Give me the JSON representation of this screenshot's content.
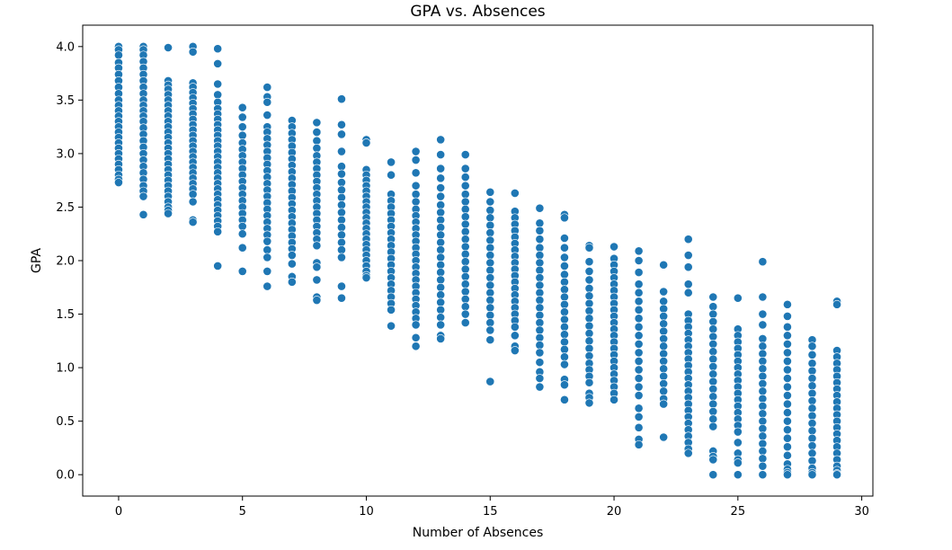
{
  "chart_data": {
    "type": "scatter",
    "title": "GPA vs. Absences",
    "xlabel": "Number of Absences",
    "ylabel": "GPA",
    "xlim": [
      -1.45,
      30.45
    ],
    "ylim": [
      -0.2,
      4.2
    ],
    "xticks": [
      0,
      5,
      10,
      15,
      20,
      25,
      30
    ],
    "xtick_labels": [
      "0",
      "5",
      "10",
      "15",
      "20",
      "25",
      "30"
    ],
    "yticks": [
      0.0,
      0.5,
      1.0,
      1.5,
      2.0,
      2.5,
      3.0,
      3.5,
      4.0
    ],
    "ytick_labels": [
      "0.0",
      "0.5",
      "1.0",
      "1.5",
      "2.0",
      "2.5",
      "3.0",
      "3.5",
      "4.0"
    ],
    "grid": false,
    "marker_color": "#1f77b4",
    "points": [
      {
        "x": 0,
        "y": [
          4.0,
          3.97,
          3.92,
          3.85,
          3.8,
          3.74,
          3.68,
          3.62,
          3.56,
          3.5,
          3.45,
          3.4,
          3.35,
          3.3,
          3.25,
          3.2,
          3.15,
          3.1,
          3.05,
          3.0,
          2.95,
          2.9,
          2.85,
          2.8,
          2.76,
          2.73
        ]
      },
      {
        "x": 1,
        "y": [
          4.0,
          3.97,
          3.92,
          3.86,
          3.8,
          3.74,
          3.68,
          3.62,
          3.56,
          3.5,
          3.45,
          3.4,
          3.35,
          3.3,
          3.24,
          3.18,
          3.12,
          3.06,
          3.0,
          2.94,
          2.88,
          2.82,
          2.76,
          2.7,
          2.65,
          2.6,
          2.43
        ]
      },
      {
        "x": 2,
        "y": [
          3.99,
          3.68,
          3.64,
          3.6,
          3.55,
          3.5,
          3.45,
          3.4,
          3.35,
          3.3,
          3.25,
          3.2,
          3.15,
          3.1,
          3.05,
          3.0,
          2.95,
          2.9,
          2.85,
          2.8,
          2.75,
          2.7,
          2.65,
          2.6,
          2.55,
          2.5,
          2.47,
          2.44
        ]
      },
      {
        "x": 3,
        "y": [
          4.0,
          3.95,
          3.66,
          3.62,
          3.57,
          3.52,
          3.47,
          3.42,
          3.37,
          3.32,
          3.27,
          3.22,
          3.17,
          3.12,
          3.07,
          3.02,
          2.97,
          2.92,
          2.87,
          2.82,
          2.77,
          2.72,
          2.67,
          2.62,
          2.55,
          2.38,
          2.36
        ]
      },
      {
        "x": 4,
        "y": [
          3.98,
          3.84,
          3.65,
          3.55,
          3.48,
          3.42,
          3.37,
          3.32,
          3.27,
          3.22,
          3.17,
          3.12,
          3.07,
          3.02,
          2.97,
          2.92,
          2.87,
          2.82,
          2.77,
          2.72,
          2.67,
          2.62,
          2.57,
          2.52,
          2.47,
          2.42,
          2.37,
          2.32,
          2.27,
          1.95
        ]
      },
      {
        "x": 5,
        "y": [
          3.43,
          3.34,
          3.25,
          3.17,
          3.1,
          3.04,
          2.98,
          2.92,
          2.86,
          2.8,
          2.74,
          2.68,
          2.62,
          2.56,
          2.5,
          2.44,
          2.38,
          2.32,
          2.25,
          2.12,
          1.9
        ]
      },
      {
        "x": 6,
        "y": [
          3.62,
          3.53,
          3.48,
          3.36,
          3.25,
          3.2,
          3.14,
          3.08,
          3.02,
          2.96,
          2.9,
          2.84,
          2.78,
          2.72,
          2.66,
          2.6,
          2.54,
          2.48,
          2.42,
          2.36,
          2.3,
          2.24,
          2.18,
          2.1,
          2.03,
          1.9,
          1.76
        ]
      },
      {
        "x": 7,
        "y": [
          3.31,
          3.25,
          3.19,
          3.13,
          3.07,
          3.01,
          2.95,
          2.89,
          2.83,
          2.77,
          2.71,
          2.65,
          2.59,
          2.53,
          2.47,
          2.41,
          2.35,
          2.29,
          2.23,
          2.17,
          2.11,
          2.05,
          1.97,
          1.85,
          1.8
        ]
      },
      {
        "x": 8,
        "y": [
          3.29,
          3.2,
          3.12,
          3.05,
          2.98,
          2.92,
          2.86,
          2.8,
          2.74,
          2.68,
          2.62,
          2.56,
          2.5,
          2.44,
          2.38,
          2.32,
          2.26,
          2.2,
          2.14,
          1.98,
          1.94,
          1.82,
          1.66,
          1.63
        ]
      },
      {
        "x": 9,
        "y": [
          3.51,
          3.27,
          3.18,
          3.02,
          2.88,
          2.81,
          2.73,
          2.66,
          2.59,
          2.52,
          2.45,
          2.38,
          2.31,
          2.24,
          2.17,
          2.1,
          2.03,
          1.76,
          1.65
        ]
      },
      {
        "x": 10,
        "y": [
          3.13,
          3.1,
          2.85,
          2.8,
          2.75,
          2.7,
          2.65,
          2.6,
          2.55,
          2.5,
          2.45,
          2.4,
          2.35,
          2.3,
          2.25,
          2.2,
          2.15,
          2.1,
          2.05,
          2.0,
          1.95,
          1.9,
          1.86,
          1.84
        ]
      },
      {
        "x": 11,
        "y": [
          2.92,
          2.8,
          2.62,
          2.56,
          2.5,
          2.44,
          2.38,
          2.32,
          2.26,
          2.2,
          2.14,
          2.08,
          2.02,
          1.96,
          1.9,
          1.84,
          1.78,
          1.72,
          1.66,
          1.6,
          1.54,
          1.39
        ]
      },
      {
        "x": 12,
        "y": [
          3.02,
          2.94,
          2.82,
          2.7,
          2.62,
          2.55,
          2.48,
          2.42,
          2.36,
          2.3,
          2.24,
          2.18,
          2.12,
          2.06,
          2.0,
          1.94,
          1.88,
          1.82,
          1.76,
          1.7,
          1.64,
          1.58,
          1.52,
          1.46,
          1.4,
          1.28,
          1.2
        ]
      },
      {
        "x": 13,
        "y": [
          3.13,
          2.99,
          2.86,
          2.77,
          2.68,
          2.6,
          2.52,
          2.45,
          2.38,
          2.31,
          2.24,
          2.17,
          2.1,
          2.03,
          1.96,
          1.89,
          1.82,
          1.75,
          1.68,
          1.61,
          1.54,
          1.47,
          1.4,
          1.3,
          1.27
        ]
      },
      {
        "x": 14,
        "y": [
          2.99,
          2.86,
          2.78,
          2.7,
          2.62,
          2.55,
          2.48,
          2.41,
          2.34,
          2.27,
          2.2,
          2.13,
          2.06,
          1.99,
          1.92,
          1.85,
          1.78,
          1.71,
          1.64,
          1.57,
          1.5,
          1.42
        ]
      },
      {
        "x": 15,
        "y": [
          2.64,
          2.55,
          2.47,
          2.4,
          2.33,
          2.26,
          2.19,
          2.12,
          2.05,
          1.98,
          1.91,
          1.84,
          1.77,
          1.7,
          1.63,
          1.56,
          1.49,
          1.42,
          1.35,
          1.26,
          0.87
        ]
      },
      {
        "x": 16,
        "y": [
          2.63,
          2.46,
          2.4,
          2.34,
          2.28,
          2.22,
          2.16,
          2.1,
          2.04,
          1.98,
          1.92,
          1.86,
          1.8,
          1.74,
          1.68,
          1.62,
          1.56,
          1.5,
          1.44,
          1.38,
          1.3,
          1.2,
          1.16
        ]
      },
      {
        "x": 17,
        "y": [
          2.49,
          2.35,
          2.28,
          2.2,
          2.12,
          2.05,
          1.98,
          1.91,
          1.84,
          1.77,
          1.7,
          1.63,
          1.56,
          1.49,
          1.42,
          1.35,
          1.28,
          1.21,
          1.14,
          1.05,
          0.96,
          0.9,
          0.82
        ]
      },
      {
        "x": 18,
        "y": [
          2.43,
          2.4,
          2.21,
          2.12,
          2.03,
          1.95,
          1.87,
          1.8,
          1.73,
          1.66,
          1.59,
          1.52,
          1.45,
          1.38,
          1.31,
          1.24,
          1.17,
          1.1,
          1.03,
          0.89,
          0.84,
          0.7
        ]
      },
      {
        "x": 19,
        "y": [
          2.14,
          2.12,
          1.99,
          1.9,
          1.82,
          1.74,
          1.67,
          1.6,
          1.53,
          1.46,
          1.39,
          1.32,
          1.25,
          1.18,
          1.11,
          1.04,
          0.98,
          0.92,
          0.86,
          0.76,
          0.72,
          0.67
        ]
      },
      {
        "x": 20,
        "y": [
          2.13,
          2.02,
          1.96,
          1.9,
          1.84,
          1.78,
          1.72,
          1.66,
          1.6,
          1.54,
          1.48,
          1.42,
          1.36,
          1.3,
          1.24,
          1.18,
          1.12,
          1.06,
          1.0,
          0.94,
          0.88,
          0.82,
          0.76,
          0.7
        ]
      },
      {
        "x": 21,
        "y": [
          2.09,
          2.0,
          1.89,
          1.78,
          1.7,
          1.62,
          1.54,
          1.46,
          1.38,
          1.3,
          1.22,
          1.14,
          1.06,
          0.98,
          0.9,
          0.82,
          0.74,
          0.62,
          0.54,
          0.44,
          0.33,
          0.28
        ]
      },
      {
        "x": 22,
        "y": [
          1.96,
          1.71,
          1.62,
          1.55,
          1.48,
          1.41,
          1.34,
          1.27,
          1.2,
          1.13,
          1.06,
          0.99,
          0.92,
          0.85,
          0.78,
          0.71,
          0.66,
          0.35
        ]
      },
      {
        "x": 23,
        "y": [
          2.2,
          2.05,
          1.94,
          1.78,
          1.7,
          1.5,
          1.44,
          1.38,
          1.32,
          1.26,
          1.2,
          1.14,
          1.08,
          1.02,
          0.96,
          0.9,
          0.84,
          0.78,
          0.72,
          0.66,
          0.6,
          0.54,
          0.48,
          0.42,
          0.36,
          0.3,
          0.24,
          0.2
        ]
      },
      {
        "x": 24,
        "y": [
          1.66,
          1.57,
          1.5,
          1.43,
          1.36,
          1.29,
          1.22,
          1.15,
          1.08,
          1.01,
          0.94,
          0.87,
          0.8,
          0.73,
          0.66,
          0.59,
          0.52,
          0.45,
          0.22,
          0.17,
          0.14,
          0.0
        ]
      },
      {
        "x": 25,
        "y": [
          1.65,
          1.36,
          1.3,
          1.24,
          1.18,
          1.12,
          1.06,
          1.0,
          0.94,
          0.88,
          0.82,
          0.76,
          0.7,
          0.64,
          0.58,
          0.52,
          0.46,
          0.4,
          0.3,
          0.2,
          0.14,
          0.11,
          0.0
        ]
      },
      {
        "x": 26,
        "y": [
          1.99,
          1.66,
          1.5,
          1.4,
          1.27,
          1.2,
          1.13,
          1.06,
          0.99,
          0.92,
          0.85,
          0.78,
          0.71,
          0.64,
          0.57,
          0.5,
          0.43,
          0.36,
          0.29,
          0.22,
          0.15,
          0.08,
          0.0
        ]
      },
      {
        "x": 27,
        "y": [
          1.59,
          1.48,
          1.38,
          1.3,
          1.22,
          1.14,
          1.06,
          0.98,
          0.9,
          0.82,
          0.74,
          0.66,
          0.58,
          0.5,
          0.42,
          0.34,
          0.26,
          0.18,
          0.1,
          0.05,
          0.02,
          0.0
        ]
      },
      {
        "x": 28,
        "y": [
          1.26,
          1.2,
          1.12,
          1.04,
          0.97,
          0.9,
          0.83,
          0.76,
          0.69,
          0.62,
          0.55,
          0.48,
          0.41,
          0.34,
          0.27,
          0.2,
          0.13,
          0.06,
          0.02,
          0.0
        ]
      },
      {
        "x": 29,
        "y": [
          1.62,
          1.59,
          1.16,
          1.1,
          1.04,
          0.98,
          0.92,
          0.86,
          0.8,
          0.74,
          0.68,
          0.62,
          0.56,
          0.5,
          0.44,
          0.38,
          0.32,
          0.26,
          0.2,
          0.14,
          0.08,
          0.04,
          0.01,
          0.0
        ]
      }
    ]
  }
}
